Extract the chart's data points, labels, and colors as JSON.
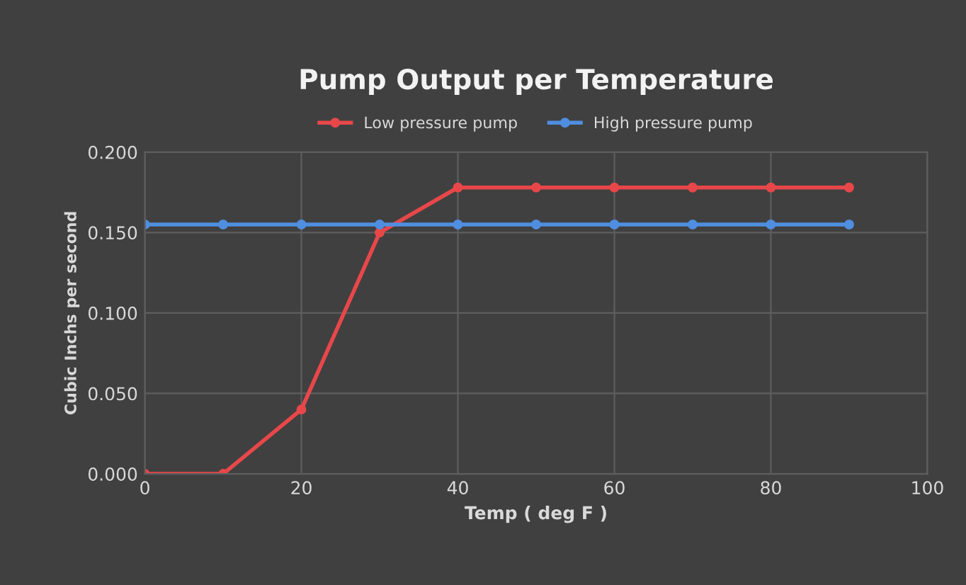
{
  "chart_data": {
    "type": "line",
    "title": "Pump Output per Temperature",
    "xlabel": "Temp ( deg F )",
    "ylabel": "Cubic Inchs per second",
    "x": [
      0,
      10,
      20,
      30,
      40,
      50,
      60,
      70,
      80,
      90
    ],
    "series": [
      {
        "name": "Low pressure pump",
        "color": "#e8474a",
        "values": [
          0.0,
          0.0,
          0.04,
          0.15,
          0.178,
          0.178,
          0.178,
          0.178,
          0.178,
          0.178
        ]
      },
      {
        "name": "High pressure pump",
        "color": "#4f8ee0",
        "values": [
          0.155,
          0.155,
          0.155,
          0.155,
          0.155,
          0.155,
          0.155,
          0.155,
          0.155,
          0.155
        ]
      }
    ],
    "xlim": [
      0,
      100
    ],
    "xticks": [
      0,
      20,
      40,
      60,
      80,
      100
    ],
    "ylim": [
      0,
      0.2
    ],
    "yticks": [
      {
        "value": 0,
        "label": "0.000"
      },
      {
        "value": 0.05,
        "label": "0.050"
      },
      {
        "value": 0.1,
        "label": "0.100"
      },
      {
        "value": 0.15,
        "label": "0.150"
      },
      {
        "value": 0.2,
        "label": "0.200"
      }
    ],
    "grid": true,
    "legend": "top",
    "marker": "circle",
    "line_style": "solid"
  }
}
